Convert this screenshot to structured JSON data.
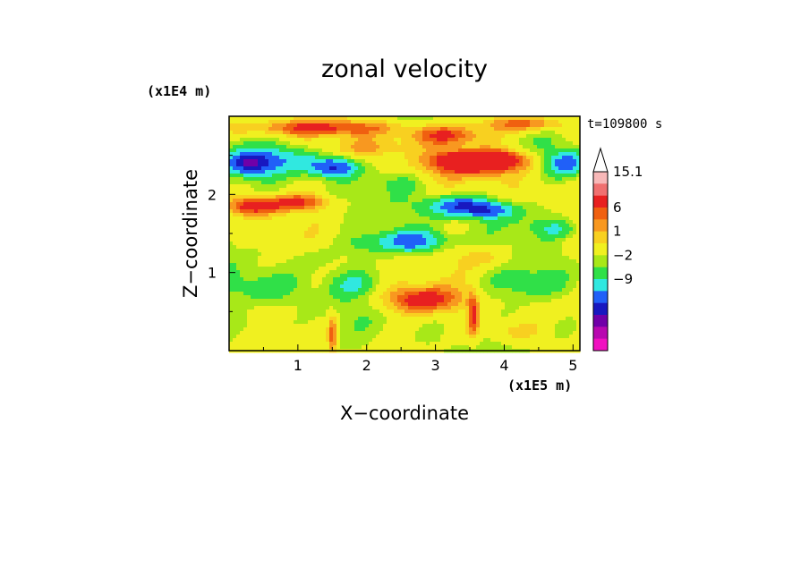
{
  "chart_data": {
    "type": "heatmap",
    "title": "zonal velocity",
    "xlabel": "X−coordinate",
    "ylabel": "Z−coordinate",
    "x_units_label": "(x1E5 m)",
    "y_units_label": "(x1E4 m)",
    "time_label": "t=109800 s",
    "x_ticks": [
      "1",
      "2",
      "3",
      "4",
      "5"
    ],
    "x_tick_values": [
      1,
      2,
      3,
      4,
      5
    ],
    "y_ticks": [
      "1",
      "2"
    ],
    "y_tick_values": [
      1,
      2
    ],
    "xlim": [
      0.0,
      5.1
    ],
    "ylim": [
      0.0,
      3.0
    ],
    "grid": false,
    "colorbar": {
      "labels": [
        "15.1",
        "6",
        "1",
        "−2",
        "−9"
      ],
      "colors_top_to_bottom": [
        "#ffffff",
        "#f8b8b8",
        "#f07070",
        "#e82020",
        "#f06010",
        "#f89820",
        "#f8d020",
        "#f0f020",
        "#a8e818",
        "#30e048",
        "#30e8e0",
        "#2060f8",
        "#1818c0",
        "#7000a8",
        "#b808b0",
        "#f010c0"
      ]
    },
    "palette": {
      "magenta": "#f010c0",
      "purple": "#b808b0",
      "violet": "#7000a8",
      "navy": "#1818c0",
      "blue": "#2060f8",
      "cyan": "#30e8e0",
      "green": "#30e048",
      "lime": "#a8e818",
      "yellow": "#f0f020",
      "gold": "#f8d020",
      "orange": "#f89820",
      "dark_orange": "#f06010",
      "red": "#e82020",
      "light_red": "#f07070",
      "pink": "#f8b8b8"
    },
    "features": [
      {
        "x": 0.3,
        "z": 2.4,
        "rx": 0.35,
        "rz": 0.15,
        "v": -7
      },
      {
        "x": 1.5,
        "z": 2.35,
        "rx": 0.35,
        "rz": 0.12,
        "v": -6
      },
      {
        "x": 0.9,
        "z": 2.45,
        "rx": 0.4,
        "rz": 0.18,
        "v": -3
      },
      {
        "x": 4.9,
        "z": 2.4,
        "rx": 0.3,
        "rz": 0.15,
        "v": -5
      },
      {
        "x": 3.6,
        "z": 2.4,
        "rx": 0.8,
        "rz": 0.17,
        "v": 5
      },
      {
        "x": 3.7,
        "z": 2.45,
        "rx": 0.5,
        "rz": 0.1,
        "v": 6
      },
      {
        "x": 3.15,
        "z": 2.75,
        "rx": 0.6,
        "rz": 0.12,
        "v": 4
      },
      {
        "x": 3.35,
        "z": 1.85,
        "rx": 0.45,
        "rz": 0.13,
        "v": -6
      },
      {
        "x": 3.8,
        "z": 1.8,
        "rx": 0.35,
        "rz": 0.1,
        "v": -4
      },
      {
        "x": 0.35,
        "z": 1.85,
        "rx": 0.4,
        "rz": 0.12,
        "v": 5
      },
      {
        "x": 1.0,
        "z": 1.9,
        "rx": 0.45,
        "rz": 0.1,
        "v": 4
      },
      {
        "x": 2.65,
        "z": 1.4,
        "rx": 0.5,
        "rz": 0.14,
        "v": -5
      },
      {
        "x": 2.0,
        "z": 1.35,
        "rx": 0.35,
        "rz": 0.12,
        "v": -1
      },
      {
        "x": 2.8,
        "z": 0.65,
        "rx": 0.55,
        "rz": 0.17,
        "v": 5
      },
      {
        "x": 1.3,
        "z": 2.85,
        "rx": 1.3,
        "rz": 0.1,
        "v": 4
      },
      {
        "x": 4.3,
        "z": 2.9,
        "rx": 0.6,
        "rz": 0.1,
        "v": 4
      },
      {
        "x": 2.1,
        "z": 2.6,
        "rx": 0.6,
        "rz": 0.12,
        "v": 2
      },
      {
        "x": 1.2,
        "z": 1.2,
        "rx": 0.4,
        "rz": 0.2,
        "v": -1
      },
      {
        "x": 0.5,
        "z": 0.8,
        "rx": 0.5,
        "rz": 0.2,
        "v": -2
      },
      {
        "x": 0.3,
        "z": 0.3,
        "rx": 0.4,
        "rz": 0.2,
        "v": -1
      },
      {
        "x": 1.8,
        "z": 0.85,
        "rx": 0.35,
        "rz": 0.15,
        "v": -2
      },
      {
        "x": 4.4,
        "z": 0.85,
        "rx": 0.5,
        "rz": 0.2,
        "v": -2
      },
      {
        "x": 4.8,
        "z": 0.3,
        "rx": 0.4,
        "rz": 0.2,
        "v": -1
      },
      {
        "x": 4.4,
        "z": 1.65,
        "rx": 0.5,
        "rz": 0.15,
        "v": -1
      },
      {
        "x": 4.8,
        "z": 1.55,
        "rx": 0.3,
        "rz": 0.1,
        "v": -2
      },
      {
        "x": 4.0,
        "z": 0.25,
        "rx": 0.5,
        "rz": 0.15,
        "v": 2
      },
      {
        "x": 3.7,
        "z": 1.2,
        "rx": 0.4,
        "rz": 0.15,
        "v": 2
      },
      {
        "x": 3.55,
        "z": 0.45,
        "rx": 0.08,
        "rz": 0.3,
        "v": 4
      },
      {
        "x": 1.5,
        "z": 0.2,
        "rx": 0.06,
        "rz": 0.25,
        "v": 4
      },
      {
        "x": 0.8,
        "z": 0.5,
        "rx": 0.3,
        "rz": 0.15,
        "v": 0
      },
      {
        "x": 2.4,
        "z": 2.15,
        "rx": 0.4,
        "rz": 0.12,
        "v": -1
      },
      {
        "x": 4.5,
        "z": 2.05,
        "rx": 0.4,
        "rz": 0.12,
        "v": 1
      },
      {
        "x": 1.6,
        "z": 1.65,
        "rx": 0.4,
        "rz": 0.15,
        "v": 0
      }
    ]
  }
}
